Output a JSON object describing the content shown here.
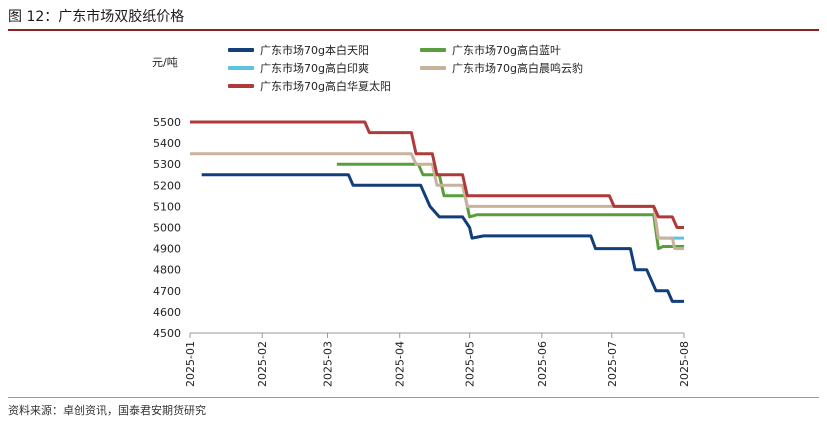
{
  "figure": {
    "title": "图 12：广东市场双胶纸价格",
    "source": "资料来源：卓创资讯，国泰君安期货研究"
  },
  "chart_data": {
    "type": "line",
    "ylabel": "元/吨",
    "ylim": [
      4500,
      5500
    ],
    "yticks": [
      4500,
      4600,
      4700,
      4800,
      4900,
      5000,
      5100,
      5200,
      5300,
      5400,
      5500
    ],
    "xlim": [
      "2025-01-01",
      "2025-08-01"
    ],
    "xticks": [
      "2025-01",
      "2025-02",
      "2025-03",
      "2025-04",
      "2025-05",
      "2025-06",
      "2025-07",
      "2025-08"
    ],
    "grid": false,
    "legend_position": "top",
    "series": [
      {
        "name": "广东市场70g本白天阳",
        "color": "#123e7a",
        "points": [
          [
            "2025-01-06",
            5250
          ],
          [
            "2025-03-10",
            5250
          ],
          [
            "2025-03-12",
            5200
          ],
          [
            "2025-04-10",
            5200
          ],
          [
            "2025-04-12",
            5150
          ],
          [
            "2025-04-14",
            5100
          ],
          [
            "2025-04-18",
            5050
          ],
          [
            "2025-04-28",
            5050
          ],
          [
            "2025-05-01",
            5000
          ],
          [
            "2025-05-02",
            4950
          ],
          [
            "2025-05-07",
            4960
          ],
          [
            "2025-06-22",
            4960
          ],
          [
            "2025-06-24",
            4900
          ],
          [
            "2025-07-09",
            4900
          ],
          [
            "2025-07-11",
            4800
          ],
          [
            "2025-07-16",
            4800
          ],
          [
            "2025-07-18",
            4750
          ],
          [
            "2025-07-20",
            4700
          ],
          [
            "2025-07-25",
            4700
          ],
          [
            "2025-07-27",
            4650
          ],
          [
            "2025-08-01",
            4650
          ]
        ]
      },
      {
        "name": "广东市场70g高白蓝叶",
        "color": "#5a9e3c",
        "points": [
          [
            "2025-03-05",
            5300
          ],
          [
            "2025-04-09",
            5300
          ],
          [
            "2025-04-11",
            5250
          ],
          [
            "2025-04-18",
            5250
          ],
          [
            "2025-04-20",
            5150
          ],
          [
            "2025-04-29",
            5150
          ],
          [
            "2025-05-01",
            5050
          ],
          [
            "2025-05-04",
            5060
          ],
          [
            "2025-07-19",
            5060
          ],
          [
            "2025-07-21",
            4900
          ],
          [
            "2025-07-23",
            4910
          ],
          [
            "2025-08-01",
            4910
          ]
        ]
      },
      {
        "name": "广东市场70g高白印爽",
        "color": "#5cc3e3",
        "points": [
          [
            "2025-07-22",
            4950
          ],
          [
            "2025-08-01",
            4950
          ]
        ]
      },
      {
        "name": "广东市场70g高白晨鸣云豹",
        "color": "#c9b29c",
        "points": [
          [
            "2025-01-01",
            5350
          ],
          [
            "2025-04-06",
            5350
          ],
          [
            "2025-04-08",
            5300
          ],
          [
            "2025-04-15",
            5300
          ],
          [
            "2025-04-17",
            5200
          ],
          [
            "2025-04-28",
            5200
          ],
          [
            "2025-04-30",
            5100
          ],
          [
            "2025-07-19",
            5100
          ],
          [
            "2025-07-21",
            4950
          ],
          [
            "2025-07-27",
            4950
          ],
          [
            "2025-07-28",
            4900
          ],
          [
            "2025-08-01",
            4900
          ]
        ]
      },
      {
        "name": "广东市场70g高白华夏太阳",
        "color": "#b03a3a",
        "points": [
          [
            "2025-01-01",
            5500
          ],
          [
            "2025-03-17",
            5500
          ],
          [
            "2025-03-19",
            5450
          ],
          [
            "2025-04-06",
            5450
          ],
          [
            "2025-04-08",
            5350
          ],
          [
            "2025-04-15",
            5350
          ],
          [
            "2025-04-17",
            5250
          ],
          [
            "2025-04-28",
            5250
          ],
          [
            "2025-04-30",
            5150
          ],
          [
            "2025-06-30",
            5150
          ],
          [
            "2025-07-02",
            5100
          ],
          [
            "2025-07-19",
            5100
          ],
          [
            "2025-07-21",
            5050
          ],
          [
            "2025-07-27",
            5050
          ],
          [
            "2025-07-29",
            5000
          ],
          [
            "2025-08-01",
            5000
          ]
        ]
      }
    ]
  }
}
